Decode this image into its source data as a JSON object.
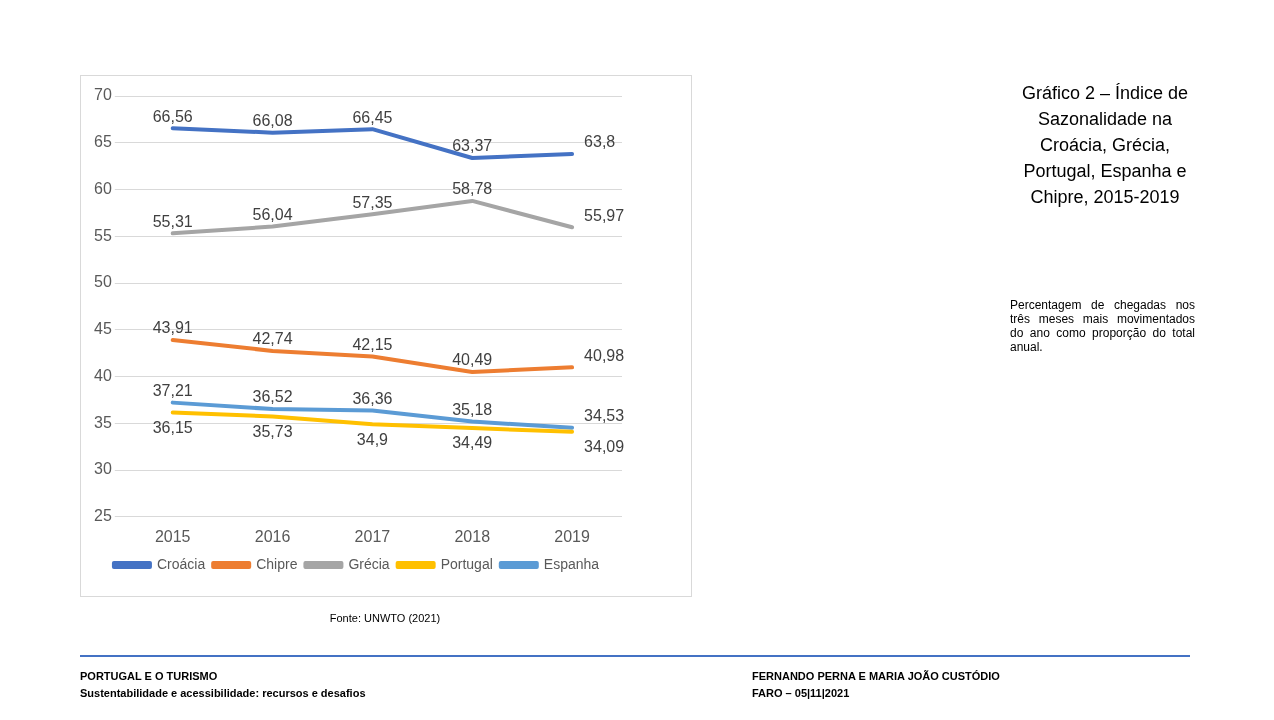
{
  "chart_data": {
    "type": "line",
    "title": "Gráfico 2 – Índice de Sazonalidade na Croácia, Grécia, Portugal, Espanha e Chipre, 2015-2019",
    "categories": [
      "2015",
      "2016",
      "2017",
      "2018",
      "2019"
    ],
    "series": [
      {
        "name": "Croácia",
        "color": "#4472c4",
        "values": [
          66.56,
          66.08,
          66.45,
          63.37,
          63.8
        ],
        "value_labels": [
          "66,56",
          "66,08",
          "66,45",
          "63,37",
          "63,8"
        ]
      },
      {
        "name": "Chipre",
        "color": "#ed7d31",
        "values": [
          43.91,
          42.74,
          42.15,
          40.49,
          40.98
        ],
        "value_labels": [
          "43,91",
          "42,74",
          "42,15",
          "40,49",
          "40,98"
        ]
      },
      {
        "name": "Grécia",
        "color": "#a5a5a5",
        "values": [
          55.31,
          56.04,
          57.35,
          58.78,
          55.97
        ],
        "value_labels": [
          "55,31",
          "56,04",
          "57,35",
          "58,78",
          "55,97"
        ]
      },
      {
        "name": "Portugal",
        "color": "#ffc000",
        "values": [
          36.15,
          35.73,
          34.9,
          34.49,
          34.09
        ],
        "value_labels": [
          "36,15",
          "35,73",
          "34,9",
          "34,49",
          "34,09"
        ]
      },
      {
        "name": "Espanha",
        "color": "#5b9bd5",
        "values": [
          37.21,
          36.52,
          36.36,
          35.18,
          34.53
        ],
        "value_labels": [
          "37,21",
          "36,52",
          "36,36",
          "35,18",
          "34,53"
        ]
      }
    ],
    "ylim": [
      25,
      70
    ],
    "yticks": [
      25,
      30,
      35,
      40,
      45,
      50,
      55,
      60,
      65,
      70
    ],
    "grid": "y",
    "legend": "bottom",
    "marker": "none",
    "annotations": [
      "Percentagem de chegadas nos três meses mais movimentados do ano como proporção do total anual.",
      "Fonte: UNWTO (2021)",
      "PORTUGAL E O TURISMO",
      "Sustentabilidade e acessibilidade: recursos e desafios",
      "FERNANDO PERNA E MARIA JOÃO CUSTÓDIO",
      "FARO – 05|11|2021"
    ]
  }
}
